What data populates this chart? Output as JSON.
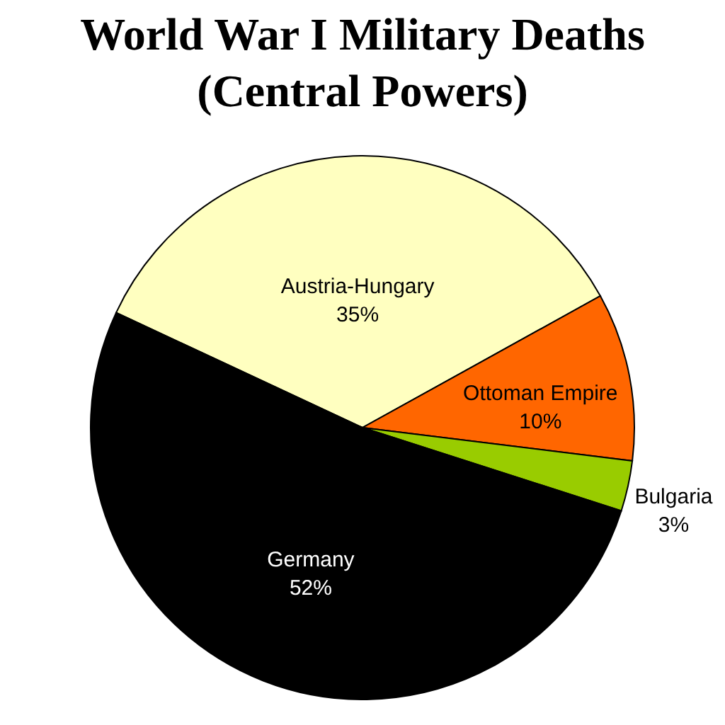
{
  "chart_data": {
    "type": "pie",
    "title": [
      "World War I Military Deaths",
      "(Central Powers)"
    ],
    "categories": [
      "Austria-Hungary",
      "Ottoman Empire",
      "Bulgaria",
      "Germany"
    ],
    "values": [
      35,
      10,
      3,
      52
    ],
    "colors": [
      "#ffffc0",
      "#ff6600",
      "#99cc00",
      "#000000"
    ],
    "value_labels": [
      "35%",
      "10%",
      "3%",
      "52%"
    ]
  }
}
